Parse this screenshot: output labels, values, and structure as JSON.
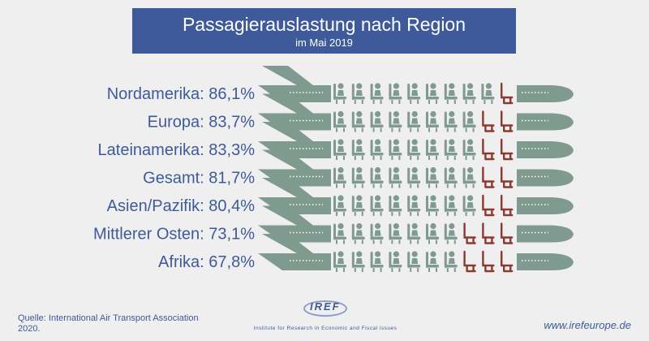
{
  "header": {
    "title": "Passagierauslastung nach Region",
    "subtitle": "im Mai 2019"
  },
  "footer": {
    "source": "Quelle: International Air Transport Association 2020.",
    "logo_text": "IREF",
    "logo_tagline": "Institute for Research in Economic and Fiscal issues",
    "website": "www.irefeurope.de"
  },
  "colors": {
    "background": "#efefef",
    "header_bg": "#3e5a9a",
    "label_text": "#3e5a9a",
    "plane": "#7f9a8e",
    "seat_occupied": "#7f9a8e",
    "seat_empty": "#8a3a2f"
  },
  "chart_data": {
    "type": "bar",
    "title": "Passagierauslastung nach Region",
    "subtitle": "im Mai 2019",
    "seats_per_row": 10,
    "categories": [
      "Nordamerika",
      "Europa",
      "Lateinamerika",
      "Gesamt",
      "Asien/Pazifik",
      "Mittlerer Osten",
      "Afrika"
    ],
    "labels": [
      "Nordamerika: 86,1%",
      "Europa: 83,7%",
      "Lateinamerika: 83,3%",
      "Gesamt: 81,7%",
      "Asien/Pazifik: 80,4%",
      "Mittlerer Osten: 73,1%",
      "Afrika: 67,8%"
    ],
    "values": [
      86.1,
      83.7,
      83.3,
      81.7,
      80.4,
      73.1,
      67.8
    ],
    "unit": "%"
  }
}
